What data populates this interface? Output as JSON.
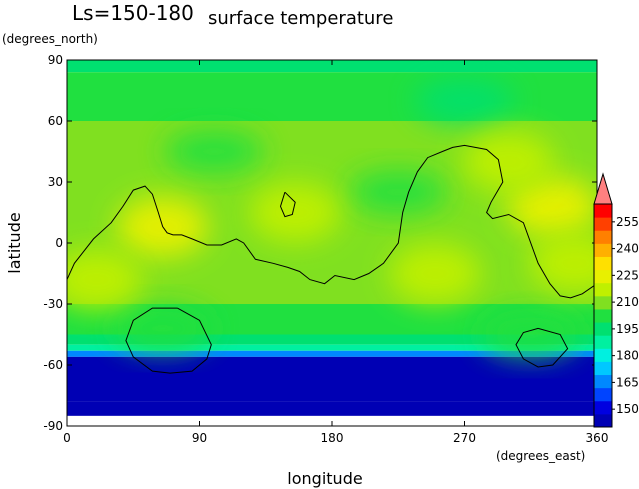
{
  "chart_data": {
    "type": "heatmap",
    "title": "surface temperature",
    "subtitle": "Ls=150-180",
    "xlabel": "longitude",
    "ylabel": "latitude",
    "x_units": "(degrees_east)",
    "y_units": "(degrees_north)",
    "xlim": [
      0,
      360
    ],
    "ylim": [
      -90,
      90
    ],
    "x_ticks": [
      0,
      90,
      180,
      270,
      360
    ],
    "y_ticks": [
      -90,
      -60,
      -30,
      0,
      30,
      60,
      90
    ],
    "colorbar": {
      "min": 140,
      "max": 265,
      "step": 7.5,
      "labels": [
        150,
        165,
        180,
        195,
        210,
        225,
        240,
        255
      ],
      "colors": [
        "#0000b4",
        "#0000e0",
        "#0044ff",
        "#0088ff",
        "#00c8ff",
        "#00f0e0",
        "#00f0a0",
        "#00e070",
        "#20e040",
        "#80e020",
        "#c0f000",
        "#e8f000",
        "#ffe000",
        "#ffb000",
        "#ff8000",
        "#ff4000",
        "#ff0000"
      ],
      "extend_max_color": "#ff8080"
    },
    "zones": [
      {
        "lat_max": 90,
        "lat_min": 84,
        "value": 195
      },
      {
        "lat_max": 84,
        "lat_min": 60,
        "value": 200
      },
      {
        "lat_max": 60,
        "lat_min": -30,
        "value": 212
      },
      {
        "lat_max": -30,
        "lat_min": -45,
        "value": 206
      },
      {
        "lat_max": -45,
        "lat_min": -50,
        "value": 195
      },
      {
        "lat_max": -50,
        "lat_min": -53,
        "value": 185
      },
      {
        "lat_max": -53,
        "lat_min": -56,
        "value": 165
      },
      {
        "lat_max": -56,
        "lat_min": -78,
        "value": 147
      },
      {
        "lat_max": -78,
        "lat_min": -85,
        "value": 145
      }
    ],
    "warm_regions": [
      {
        "lon": 65,
        "lat": 8,
        "value": 225
      },
      {
        "lon": 330,
        "lat": 18,
        "value": 227
      },
      {
        "lon": 300,
        "lat": 40,
        "value": 222
      },
      {
        "lon": 155,
        "lat": 15,
        "value": 221
      },
      {
        "lon": 20,
        "lat": -18,
        "value": 220
      },
      {
        "lon": 250,
        "lat": -15,
        "value": 219
      },
      {
        "lon": 345,
        "lat": -10,
        "value": 221
      }
    ],
    "cool_regions": [
      {
        "lon": 225,
        "lat": 25,
        "value": 205
      },
      {
        "lon": 100,
        "lat": 45,
        "value": 206
      },
      {
        "lon": 270,
        "lat": 70,
        "value": 198
      },
      {
        "lon": 65,
        "lat": -42,
        "value": 200
      },
      {
        "lon": 315,
        "lat": -45,
        "value": 201
      }
    ],
    "contours": [
      {
        "name": "coastline",
        "points": [
          [
            0,
            -18
          ],
          [
            5,
            -10
          ],
          [
            18,
            2
          ],
          [
            30,
            10
          ],
          [
            38,
            18
          ],
          [
            45,
            26
          ],
          [
            53,
            28
          ],
          [
            58,
            24
          ],
          [
            62,
            15
          ],
          [
            65,
            8
          ],
          [
            68,
            5
          ],
          [
            72,
            4
          ],
          [
            78,
            4
          ],
          [
            85,
            2
          ],
          [
            95,
            -1
          ],
          [
            105,
            -1
          ],
          [
            115,
            2
          ],
          [
            120,
            0
          ],
          [
            128,
            -8
          ],
          [
            140,
            -10
          ],
          [
            150,
            -12
          ],
          [
            158,
            -14
          ],
          [
            165,
            -18
          ],
          [
            175,
            -20
          ],
          [
            182,
            -16
          ],
          [
            195,
            -18
          ],
          [
            205,
            -15
          ],
          [
            215,
            -10
          ],
          [
            225,
            0
          ],
          [
            228,
            15
          ],
          [
            232,
            25
          ],
          [
            238,
            35
          ],
          [
            245,
            42
          ],
          [
            255,
            45
          ],
          [
            262,
            47
          ],
          [
            270,
            48
          ],
          [
            285,
            46
          ],
          [
            293,
            41
          ],
          [
            296,
            30
          ],
          [
            288,
            20
          ],
          [
            285,
            15
          ],
          [
            289,
            12
          ],
          [
            300,
            14
          ],
          [
            310,
            10
          ],
          [
            320,
            -10
          ],
          [
            328,
            -20
          ],
          [
            335,
            -26
          ],
          [
            342,
            -27
          ],
          [
            350,
            -25
          ],
          [
            360,
            -20
          ]
        ]
      },
      {
        "name": "basin-west",
        "points": [
          [
            75,
            -32
          ],
          [
            90,
            -38
          ],
          [
            98,
            -50
          ],
          [
            95,
            -57
          ],
          [
            85,
            -63
          ],
          [
            70,
            -64
          ],
          [
            58,
            -63
          ],
          [
            45,
            -56
          ],
          [
            40,
            -48
          ],
          [
            45,
            -38
          ],
          [
            58,
            -32
          ],
          [
            75,
            -32
          ]
        ]
      },
      {
        "name": "basin-east",
        "points": [
          [
            320,
            -42
          ],
          [
            335,
            -45
          ],
          [
            340,
            -52
          ],
          [
            330,
            -60
          ],
          [
            320,
            -61
          ],
          [
            310,
            -57
          ],
          [
            305,
            -50
          ],
          [
            310,
            -44
          ],
          [
            320,
            -42
          ]
        ]
      },
      {
        "name": "island",
        "points": [
          [
            148,
            25
          ],
          [
            155,
            20
          ],
          [
            153,
            14
          ],
          [
            148,
            13
          ],
          [
            145,
            18
          ],
          [
            148,
            25
          ]
        ]
      }
    ]
  }
}
